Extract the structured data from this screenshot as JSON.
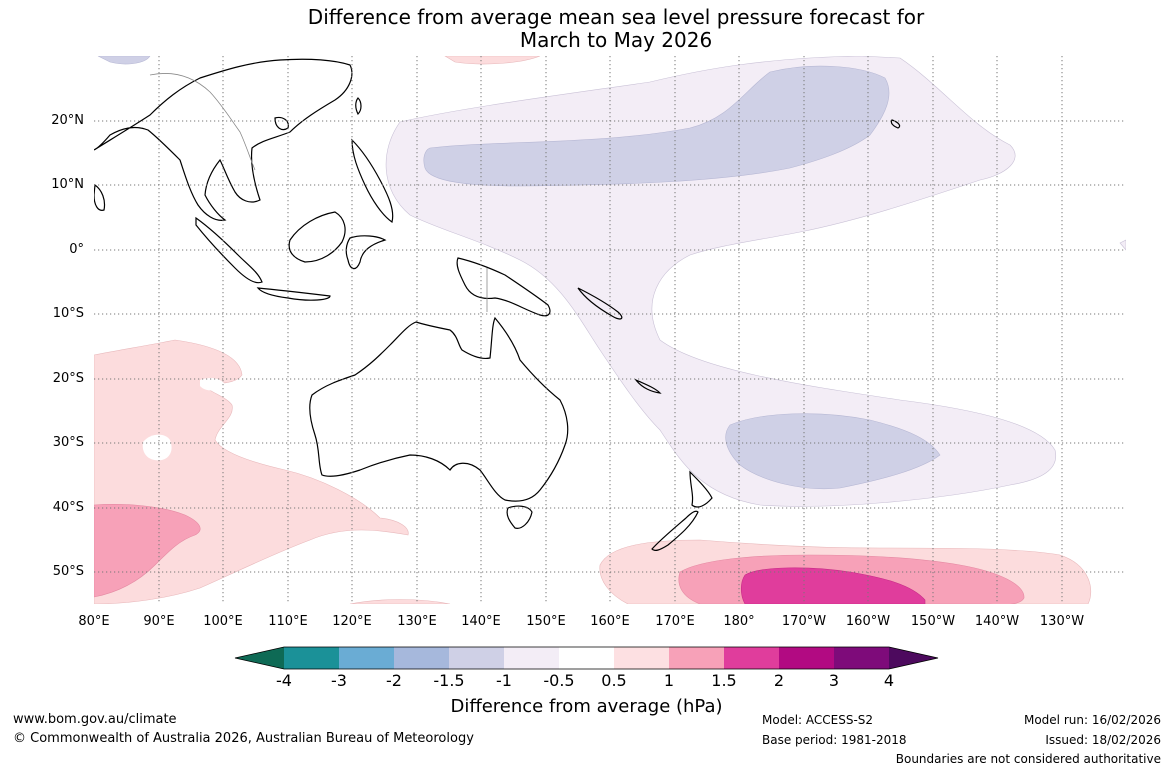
{
  "title": {
    "line1": "Difference from average mean sea level pressure forecast for",
    "line2": "March to May 2026"
  },
  "colors": {
    "coast": "#000000",
    "borders": "#8a8a8a",
    "grid": "#777777",
    "diff_neg_1": "#f3edf6",
    "diff_neg_1_5": "#cfd0e6",
    "diff_pos_0_5": "#fcdcdd",
    "diff_pos_1": "#f7a1b8",
    "diff_pos_1_5": "#e03d9c",
    "diff_pos_2": "#b20a82"
  },
  "lat_labels": [
    "20°N",
    "10°N",
    "0°",
    "10°S",
    "20°S",
    "30°S",
    "40°S",
    "50°S"
  ],
  "lon_labels": [
    "80°E",
    "90°E",
    "100°E",
    "110°E",
    "120°E",
    "130°E",
    "140°E",
    "150°E",
    "160°E",
    "170°E",
    "180°",
    "170°W",
    "160°W",
    "150°W",
    "140°W",
    "130°W"
  ],
  "legend": {
    "title": "Difference from average (hPa)",
    "tick_labels": [
      "-4",
      "-3",
      "-2",
      "-1.5",
      "-1",
      "-0.5",
      "0.5",
      "1",
      "1.5",
      "2",
      "3",
      "4"
    ],
    "bin_colors": [
      "#0e6a55",
      "#1b9198",
      "#6aacd4",
      "#a6b8dc",
      "#cfd0e6",
      "#f3edf6",
      "#ffffff",
      "#fde0e2",
      "#f7a1b8",
      "#e03d9c",
      "#b20a82",
      "#7e0b7a",
      "#4d0a5e"
    ]
  },
  "footer": {
    "url": "www.bom.gov.au/climate",
    "copyright": "© Commonwealth of Australia 2026, Australian Bureau of Meteorology",
    "model": "Model: ACCESS-S2",
    "base_period": "Base period: 1981-2018",
    "model_run": "Model run: 16/02/2026",
    "issued": "Issued: 18/02/2026",
    "disclaimer": "Boundaries are not considered authoritative"
  }
}
